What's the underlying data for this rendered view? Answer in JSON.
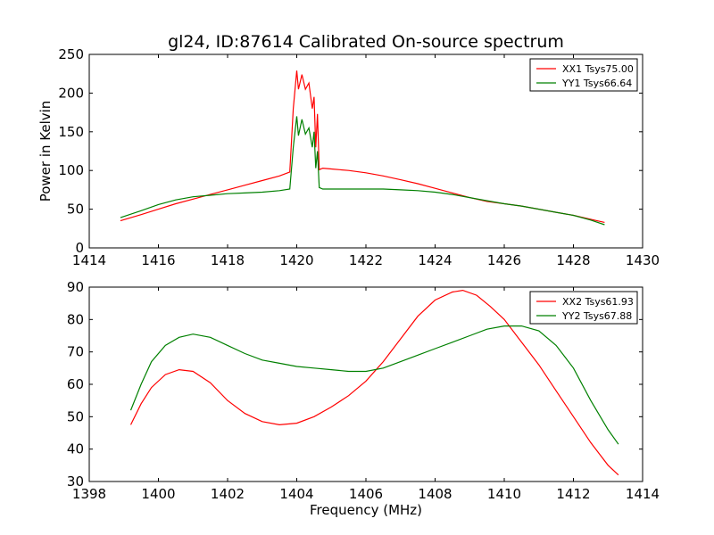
{
  "figure_title": "gl24, ID:87614 Calibrated On-source spectrum",
  "colors": {
    "xx": "#ff0000",
    "yy": "#008000"
  },
  "chart_data": [
    {
      "type": "line",
      "ylabel": "Power in Kelvin",
      "xlabel": "",
      "xlim": [
        1414,
        1430
      ],
      "ylim": [
        0,
        250
      ],
      "xticks": [
        "1414",
        "1416",
        "1418",
        "1420",
        "1422",
        "1424",
        "1426",
        "1428",
        "1430"
      ],
      "yticks": [
        "0",
        "50",
        "100",
        "150",
        "200",
        "250"
      ],
      "legend_position": "top-right",
      "series": [
        {
          "name": "XX1 Tsys75.00",
          "color": "#ff0000",
          "x": [
            1414.9,
            1415.5,
            1416,
            1416.5,
            1417,
            1417.5,
            1418,
            1418.5,
            1419,
            1419.5,
            1419.8,
            1419.9,
            1420.0,
            1420.05,
            1420.15,
            1420.25,
            1420.35,
            1420.45,
            1420.5,
            1420.55,
            1420.6,
            1420.65,
            1420.75,
            1421,
            1421.5,
            1422,
            1422.5,
            1423,
            1423.5,
            1424,
            1424.5,
            1425,
            1425.5,
            1426,
            1426.5,
            1427,
            1427.5,
            1428,
            1428.5,
            1428.9
          ],
          "y": [
            35,
            43,
            50,
            57,
            63,
            69,
            75,
            81,
            87,
            93,
            98,
            180,
            229,
            205,
            224,
            205,
            213,
            180,
            195,
            130,
            173,
            101,
            103,
            102,
            100,
            97,
            93,
            88,
            83,
            77,
            71,
            65,
            60,
            57,
            54,
            50,
            46,
            42,
            37,
            33
          ]
        },
        {
          "name": "YY1 Tsys66.64",
          "color": "#008000",
          "x": [
            1414.9,
            1415.5,
            1416,
            1416.5,
            1417,
            1417.5,
            1418,
            1418.5,
            1419,
            1419.5,
            1419.8,
            1419.9,
            1420.0,
            1420.05,
            1420.15,
            1420.25,
            1420.35,
            1420.45,
            1420.5,
            1420.55,
            1420.6,
            1420.65,
            1420.75,
            1421,
            1421.5,
            1422,
            1422.5,
            1423,
            1423.5,
            1424,
            1424.5,
            1425,
            1425.5,
            1426,
            1426.5,
            1427,
            1427.5,
            1428,
            1428.5,
            1428.9
          ],
          "y": [
            39,
            48,
            56,
            62,
            66,
            68,
            70,
            71,
            72,
            74,
            76,
            130,
            170,
            145,
            166,
            147,
            155,
            130,
            150,
            103,
            125,
            78,
            76,
            76,
            76,
            76,
            76,
            75,
            74,
            72,
            69,
            65,
            61,
            57,
            54,
            50,
            46,
            42,
            36,
            30
          ]
        }
      ]
    },
    {
      "type": "line",
      "ylabel": "",
      "xlabel": "Frequency (MHz)",
      "xlim": [
        1398,
        1414
      ],
      "ylim": [
        30,
        90
      ],
      "xticks": [
        "1398",
        "1400",
        "1402",
        "1404",
        "1406",
        "1408",
        "1410",
        "1412",
        "1414"
      ],
      "yticks": [
        "30",
        "40",
        "50",
        "60",
        "70",
        "80",
        "90"
      ],
      "legend_position": "top-right",
      "series": [
        {
          "name": "XX2 Tsys61.93",
          "color": "#ff0000",
          "x": [
            1399.2,
            1399.5,
            1399.8,
            1400.2,
            1400.6,
            1401,
            1401.5,
            1402,
            1402.5,
            1403,
            1403.5,
            1404,
            1404.5,
            1405,
            1405.5,
            1406,
            1406.5,
            1407,
            1407.5,
            1408,
            1408.5,
            1408.8,
            1409.2,
            1409.6,
            1410,
            1410.5,
            1411,
            1411.5,
            1412,
            1412.5,
            1413,
            1413.3
          ],
          "y": [
            47.5,
            54,
            59,
            63,
            64.5,
            64,
            60.5,
            55,
            51,
            48.5,
            47.5,
            48,
            50,
            53,
            56.5,
            61,
            67,
            74,
            81,
            86,
            88.5,
            89,
            87.5,
            84,
            80,
            73,
            66,
            58,
            50,
            42,
            35,
            32
          ]
        },
        {
          "name": "YY2 Tsys67.88",
          "color": "#008000",
          "x": [
            1399.2,
            1399.5,
            1399.8,
            1400.2,
            1400.6,
            1401,
            1401.5,
            1402,
            1402.5,
            1403,
            1403.5,
            1404,
            1404.5,
            1405,
            1405.5,
            1406,
            1406.5,
            1407,
            1407.5,
            1408,
            1408.5,
            1409,
            1409.5,
            1410,
            1410.5,
            1411,
            1411.5,
            1412,
            1412.5,
            1413,
            1413.3
          ],
          "y": [
            52,
            60,
            67,
            72,
            74.5,
            75.5,
            74.5,
            72,
            69.5,
            67.5,
            66.5,
            65.5,
            65,
            64.5,
            64,
            64,
            65,
            67,
            69,
            71,
            73,
            75,
            77,
            78,
            78,
            76.5,
            72,
            65,
            55,
            46,
            41.5
          ]
        }
      ]
    }
  ]
}
